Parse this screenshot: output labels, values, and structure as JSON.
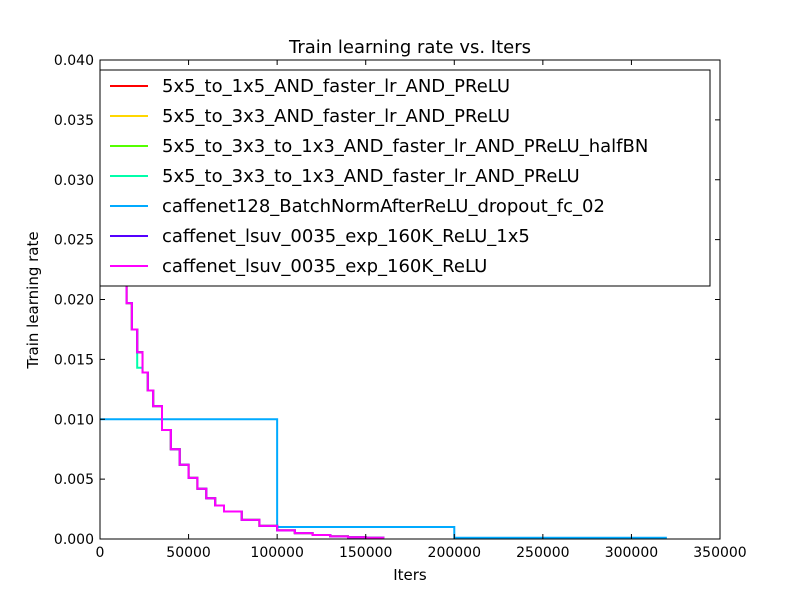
{
  "chart_data": {
    "type": "line",
    "title": "Train learning rate  vs. Iters",
    "xlabel": "Iters",
    "ylabel": "Train learning rate",
    "xlim": [
      0,
      350000
    ],
    "ylim": [
      0,
      0.04
    ],
    "xticks": [
      "0",
      "50000",
      "100000",
      "150000",
      "200000",
      "250000",
      "300000",
      "350000"
    ],
    "xtick_values": [
      0,
      50000,
      100000,
      150000,
      200000,
      250000,
      300000,
      350000
    ],
    "yticks": [
      "0.000",
      "0.005",
      "0.010",
      "0.015",
      "0.020",
      "0.025",
      "0.030",
      "0.035",
      "0.040"
    ],
    "ytick_values": [
      0,
      0.005,
      0.01,
      0.015,
      0.02,
      0.025,
      0.03,
      0.035,
      0.04
    ],
    "grid": false,
    "legend_position": "top",
    "series": [
      {
        "name": "5x5_to_1x5_AND_faster_lr_AND_PReLU",
        "color": "#ff0000",
        "step": true,
        "x": [
          0,
          3000,
          6000,
          9000,
          12000,
          15000,
          18000,
          21000,
          24000,
          27000,
          30000,
          35000,
          40000,
          45000,
          50000,
          55000,
          60000,
          65000,
          70000,
          80000,
          90000,
          100000,
          110000,
          120000,
          130000,
          140000,
          150000,
          160000
        ],
        "y": [
          0.035,
          0.0312,
          0.0278,
          0.0248,
          0.0221,
          0.0197,
          0.0175,
          0.0156,
          0.0139,
          0.0124,
          0.0111,
          0.0091,
          0.0075,
          0.0062,
          0.0051,
          0.0042,
          0.0034,
          0.0028,
          0.0023,
          0.0016,
          0.0011,
          0.00072,
          0.00049,
          0.00033,
          0.00022,
          0.00015,
          0.0001,
          7e-05
        ]
      },
      {
        "name": "5x5_to_3x3_AND_faster_lr_AND_PReLU",
        "color": "#ffd700",
        "step": true,
        "x": [
          0,
          3000,
          6000,
          9000,
          12000,
          15000,
          18000,
          21000,
          24000,
          27000,
          30000,
          35000,
          40000,
          45000,
          50000,
          55000,
          60000,
          65000,
          70000,
          80000,
          90000,
          100000,
          110000,
          120000,
          130000,
          140000,
          150000,
          160000
        ],
        "y": [
          0.035,
          0.0312,
          0.0278,
          0.0248,
          0.0221,
          0.0197,
          0.0175,
          0.0156,
          0.0139,
          0.0124,
          0.0111,
          0.0091,
          0.0075,
          0.0062,
          0.0051,
          0.0042,
          0.0034,
          0.0028,
          0.0023,
          0.0016,
          0.0011,
          0.00072,
          0.00049,
          0.00033,
          0.00022,
          0.00015,
          0.0001,
          7e-05
        ]
      },
      {
        "name": "5x5_to_3x3_to_1x3_AND_faster_lr_AND_PReLU_halfBN",
        "color": "#55ff00",
        "step": true,
        "x": [
          0,
          3000,
          6000,
          9000,
          12000,
          15000,
          18000,
          21000,
          24000,
          27000,
          30000,
          35000,
          40000,
          45000,
          50000,
          55000,
          60000,
          65000,
          70000,
          80000,
          90000,
          100000,
          110000,
          120000,
          130000,
          140000,
          150000,
          160000
        ],
        "y": [
          0.035,
          0.0312,
          0.0278,
          0.0248,
          0.0221,
          0.0197,
          0.0175,
          0.0156,
          0.0139,
          0.0124,
          0.0111,
          0.0091,
          0.0075,
          0.0062,
          0.0051,
          0.0042,
          0.0034,
          0.0028,
          0.0023,
          0.0016,
          0.0011,
          0.00072,
          0.00049,
          0.00033,
          0.00022,
          0.00015,
          0.0001,
          7e-05
        ]
      },
      {
        "name": "5x5_to_3x3_to_1x3_AND_faster_lr_AND_PReLU",
        "color": "#00ffaa",
        "step": true,
        "x": [
          0,
          3000,
          6000,
          9000,
          12000,
          15000,
          18000,
          21000,
          24000,
          27000,
          30000,
          35000,
          40000,
          45000,
          50000,
          55000,
          60000,
          65000,
          70000,
          80000,
          90000,
          100000,
          110000,
          120000,
          130000,
          140000,
          150000,
          160000
        ],
        "y": [
          0.035,
          0.0312,
          0.0278,
          0.0248,
          0.0221,
          0.0197,
          0.0175,
          0.0143,
          0.0139,
          0.0124,
          0.0111,
          0.0091,
          0.0075,
          0.0062,
          0.0051,
          0.0042,
          0.0034,
          0.0028,
          0.0023,
          0.0016,
          0.0011,
          0.00072,
          0.00049,
          0.00033,
          0.00022,
          0.00015,
          0.0001,
          7e-05
        ]
      },
      {
        "name": "caffenet128_BatchNormAfterReLU_dropout_fc_02",
        "color": "#00aaff",
        "step": true,
        "x": [
          0,
          100000,
          200000,
          320000
        ],
        "y": [
          0.01,
          0.001,
          0.0001,
          0.0001
        ]
      },
      {
        "name": "caffenet_lsuv_0035_exp_160K_ReLU_1x5",
        "color": "#5500ff",
        "step": true,
        "x": [
          0,
          3000,
          6000,
          9000,
          12000,
          15000,
          18000,
          21000,
          24000,
          27000,
          30000,
          35000,
          40000,
          45000,
          50000,
          55000,
          60000,
          65000,
          70000,
          80000,
          90000,
          100000,
          110000,
          120000,
          130000,
          140000,
          150000,
          160000
        ],
        "y": [
          0.035,
          0.0312,
          0.0278,
          0.0248,
          0.0221,
          0.0197,
          0.0175,
          0.0156,
          0.0139,
          0.0124,
          0.0111,
          0.0091,
          0.0075,
          0.0062,
          0.0051,
          0.0042,
          0.0034,
          0.0028,
          0.0023,
          0.0016,
          0.0011,
          0.00072,
          0.00049,
          0.00033,
          0.00022,
          0.00015,
          0.0001,
          7e-05
        ]
      },
      {
        "name": "caffenet_lsuv_0035_exp_160K_ReLU",
        "color": "#ff00ff",
        "step": true,
        "x": [
          0,
          3000,
          6000,
          9000,
          12000,
          15000,
          18000,
          21000,
          24000,
          27000,
          30000,
          35000,
          40000,
          45000,
          50000,
          55000,
          60000,
          65000,
          70000,
          80000,
          90000,
          100000,
          110000,
          120000,
          130000,
          140000,
          150000,
          160000
        ],
        "y": [
          0.035,
          0.0312,
          0.0278,
          0.0248,
          0.0221,
          0.0197,
          0.0175,
          0.0156,
          0.0139,
          0.0124,
          0.0111,
          0.0091,
          0.0075,
          0.0062,
          0.0051,
          0.0042,
          0.0034,
          0.0028,
          0.0023,
          0.0016,
          0.0011,
          0.00072,
          0.00049,
          0.00033,
          0.00022,
          0.00015,
          0.0001,
          7e-05
        ]
      }
    ]
  }
}
